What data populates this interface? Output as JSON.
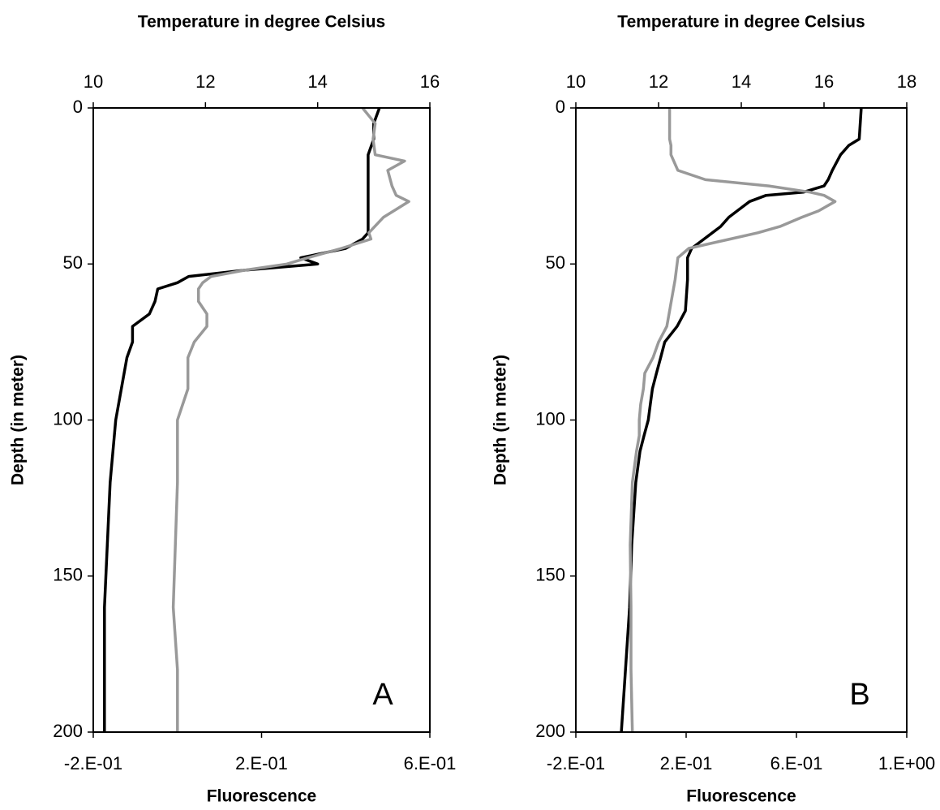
{
  "chart_data": [
    {
      "type": "line",
      "title": "Temperature in degree Celsius",
      "x_label": "Fluorescence",
      "y_label": "Depth (in meter)",
      "panel_label": "A",
      "y": [
        0,
        5,
        10,
        15,
        17,
        20,
        25,
        28,
        30,
        35,
        40,
        42,
        45,
        48,
        50,
        52,
        54,
        56,
        58,
        62,
        66,
        70,
        75,
        80,
        90,
        100,
        120,
        140,
        160,
        180,
        200
      ],
      "ylim": [
        0,
        200
      ],
      "yticks": [
        0,
        50,
        100,
        150,
        200
      ],
      "y_inverted": true,
      "xlim": [
        -0.2,
        0.6
      ],
      "xticks": [
        {
          "value": -0.2,
          "label": "-2.E-01"
        },
        {
          "value": 0.2,
          "label": "2.E-01"
        },
        {
          "value": 0.6,
          "label": "6.E-01"
        }
      ],
      "x2lim": [
        10,
        16
      ],
      "x2ticks": [
        10,
        12,
        14,
        16
      ],
      "series": [
        {
          "color": "#000000",
          "axis": "x2",
          "values": [
            15.1,
            15.0,
            15.0,
            14.9,
            14.9,
            14.9,
            14.9,
            14.9,
            14.9,
            14.9,
            14.9,
            14.8,
            14.5,
            13.7,
            14.0,
            12.7,
            11.7,
            11.5,
            11.15,
            11.1,
            11.0,
            10.7,
            10.7,
            10.6,
            10.5,
            10.4,
            10.3,
            10.25,
            10.2,
            10.2,
            10.2
          ]
        },
        {
          "color": "#999999",
          "axis": "x",
          "values": [
            0.44,
            0.47,
            0.465,
            0.47,
            0.54,
            0.5,
            0.51,
            0.52,
            0.55,
            0.49,
            0.455,
            0.46,
            0.39,
            0.31,
            0.26,
            0.16,
            0.08,
            0.06,
            0.05,
            0.05,
            0.07,
            0.07,
            0.04,
            0.025,
            0.025,
            0.0,
            0.0,
            -0.005,
            -0.01,
            0.0,
            0.0
          ]
        }
      ]
    },
    {
      "type": "line",
      "title": "Temperature in degree Celsius",
      "x_label": "Fluorescence",
      "y_label": "Depth (in meter)",
      "panel_label": "B",
      "y": [
        0,
        10,
        12,
        15,
        20,
        23,
        25,
        27,
        28,
        30,
        33,
        35,
        38,
        40,
        42,
        45,
        48,
        55,
        65,
        70,
        75,
        80,
        85,
        90,
        95,
        100,
        105,
        110,
        120,
        140,
        160,
        180,
        200
      ],
      "ylim": [
        0,
        200
      ],
      "yticks": [
        0,
        50,
        100,
        150,
        200
      ],
      "y_inverted": true,
      "xlim": [
        -0.2,
        1.0
      ],
      "xticks": [
        {
          "value": -0.2,
          "label": "-2.E-01"
        },
        {
          "value": 0.2,
          "label": "2.E-01"
        },
        {
          "value": 0.6,
          "label": "6.E-01"
        },
        {
          "value": 1.0,
          "label": "1.E+00"
        }
      ],
      "x2lim": [
        10,
        18
      ],
      "x2ticks": [
        10,
        12,
        14,
        16,
        18
      ],
      "series": [
        {
          "color": "#000000",
          "axis": "x2",
          "values": [
            16.9,
            16.85,
            16.6,
            16.4,
            16.2,
            16.1,
            16.0,
            15.5,
            14.6,
            14.2,
            13.9,
            13.7,
            13.5,
            13.3,
            13.1,
            12.8,
            12.7,
            12.7,
            12.65,
            12.45,
            12.15,
            12.05,
            11.95,
            11.85,
            11.8,
            11.75,
            11.65,
            11.55,
            11.45,
            11.35,
            11.3,
            11.2,
            11.1
          ]
        },
        {
          "color": "#999999",
          "axis": "x",
          "values": [
            0.14,
            0.14,
            0.145,
            0.145,
            0.17,
            0.27,
            0.5,
            0.65,
            0.7,
            0.74,
            0.68,
            0.62,
            0.54,
            0.46,
            0.36,
            0.21,
            0.17,
            0.16,
            0.14,
            0.13,
            0.1,
            0.08,
            0.05,
            0.045,
            0.035,
            0.03,
            0.03,
            0.02,
            0.005,
            -0.003,
            0.0,
            0.0,
            0.005
          ]
        }
      ]
    }
  ]
}
